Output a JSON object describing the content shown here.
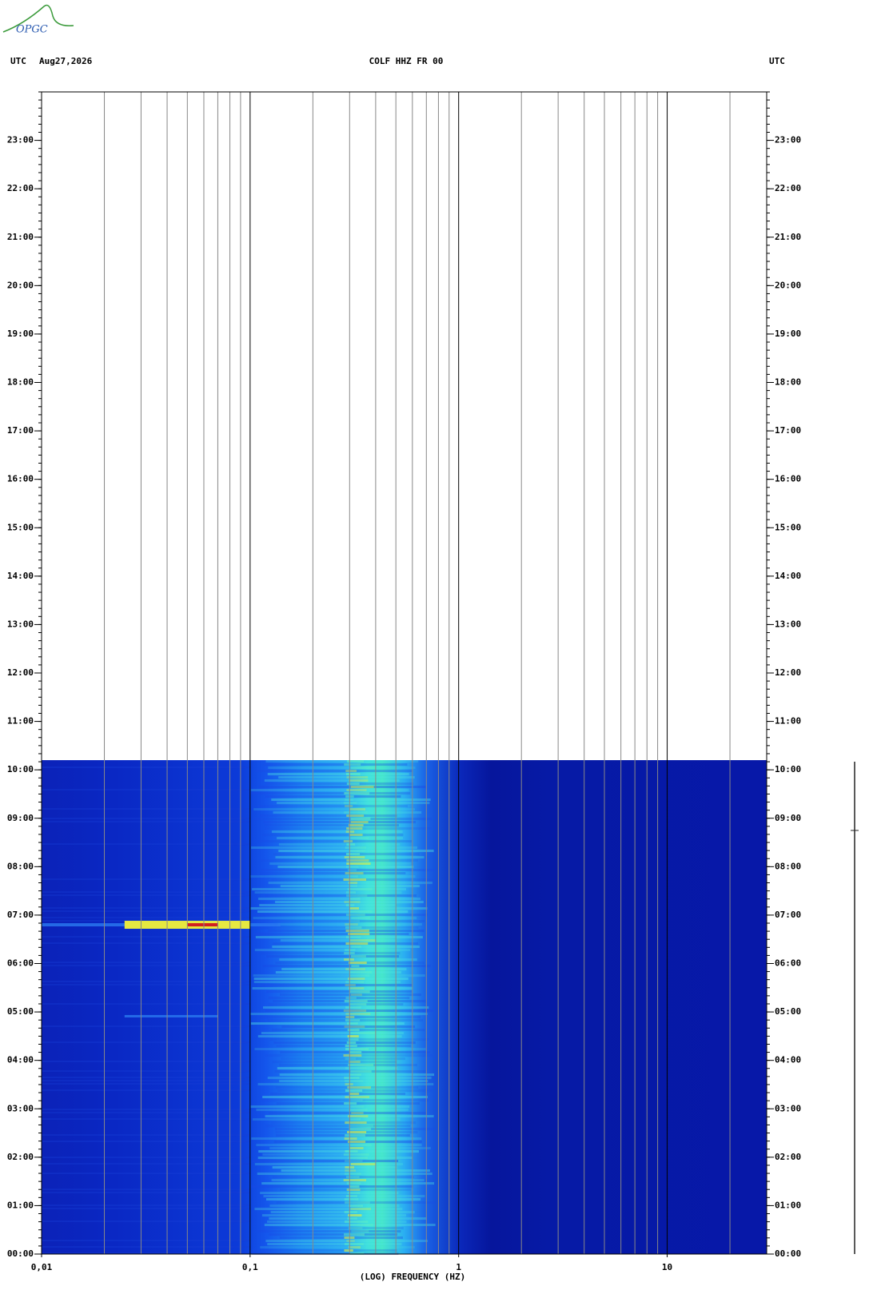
{
  "chart_data": {
    "type": "spectrogram",
    "logo": "OPGC",
    "timezone": "UTC",
    "date": "Aug27,2026",
    "title": "COLF HHZ FR 00",
    "xlabel": "(LOG) FREQUENCY (HZ)",
    "xscale": "log",
    "xlim": [
      0.01,
      30
    ],
    "xticks": [
      {
        "value": 0.01,
        "label": "0,01"
      },
      {
        "value": 0.1,
        "label": "0,1"
      },
      1,
      10
    ],
    "ylim": [
      0,
      24
    ],
    "yticks": [
      {
        "value": 0,
        "label": "00:00"
      },
      {
        "value": 1,
        "label": "01:00"
      },
      {
        "value": 2,
        "label": "02:00"
      },
      {
        "value": 3,
        "label": "03:00"
      },
      {
        "value": 4,
        "label": "04:00"
      },
      {
        "value": 5,
        "label": "05:00"
      },
      {
        "value": 6,
        "label": "06:00"
      },
      {
        "value": 7,
        "label": "07:00"
      },
      {
        "value": 8,
        "label": "08:00"
      },
      {
        "value": 9,
        "label": "09:00"
      },
      {
        "value": 10,
        "label": "10:00"
      },
      {
        "value": 11,
        "label": "11:00"
      },
      {
        "value": 12,
        "label": "12:00"
      },
      {
        "value": 13,
        "label": "13:00"
      },
      {
        "value": 14,
        "label": "14:00"
      },
      {
        "value": 15,
        "label": "15:00"
      },
      {
        "value": 16,
        "label": "16:00"
      },
      {
        "value": 17,
        "label": "17:00"
      },
      {
        "value": 18,
        "label": "18:00"
      },
      {
        "value": 19,
        "label": "19:00"
      },
      {
        "value": 20,
        "label": "20:00"
      },
      {
        "value": 21,
        "label": "21:00"
      },
      {
        "value": 22,
        "label": "22:00"
      },
      {
        "value": 23,
        "label": "23:00"
      }
    ],
    "data_end": 10.2
  }
}
